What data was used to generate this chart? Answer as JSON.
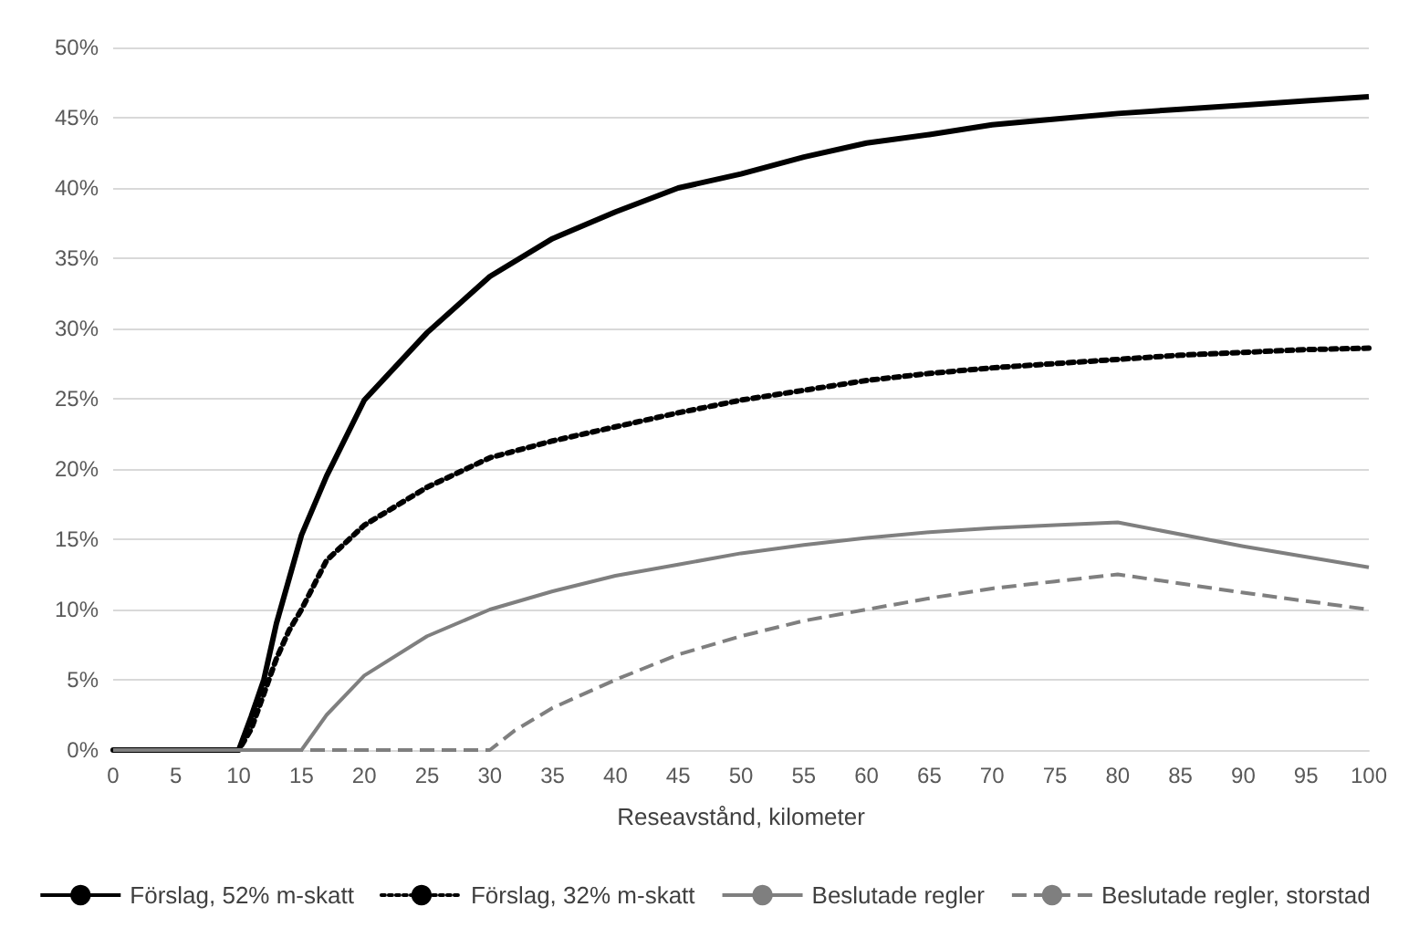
{
  "chart_data": {
    "type": "line",
    "xlabel": "Reseavstånd, kilometer",
    "xlim": [
      0,
      100
    ],
    "xticks": [
      0,
      5,
      10,
      15,
      20,
      25,
      30,
      35,
      40,
      45,
      50,
      55,
      60,
      65,
      70,
      75,
      80,
      85,
      90,
      95,
      100
    ],
    "ylim": [
      0,
      50
    ],
    "yticks": [
      {
        "value": 0,
        "label": "0%"
      },
      {
        "value": 5,
        "label": "5%"
      },
      {
        "value": 10,
        "label": "10%"
      },
      {
        "value": 15,
        "label": "15%"
      },
      {
        "value": 20,
        "label": "20%"
      },
      {
        "value": 25,
        "label": "25%"
      },
      {
        "value": 30,
        "label": "30%"
      },
      {
        "value": 35,
        "label": "35%"
      },
      {
        "value": 40,
        "label": "40%"
      },
      {
        "value": 45,
        "label": "45%"
      },
      {
        "value": 50,
        "label": "50%"
      }
    ],
    "grid": "y",
    "legend": "bottom",
    "marker": "none",
    "series": [
      {
        "name": "Förslag, 52% m-skatt",
        "color": "#000000",
        "line_style": "solid",
        "x": [
          0,
          10,
          11,
          12,
          13,
          15,
          17,
          20,
          25,
          30,
          35,
          40,
          45,
          50,
          55,
          60,
          65,
          70,
          75,
          80,
          85,
          90,
          95,
          100
        ],
        "values": [
          0,
          0,
          2.4,
          5,
          9,
          15.3,
          19.5,
          24.9,
          29.7,
          33.7,
          36.4,
          38.3,
          40,
          41,
          42.2,
          43.2,
          43.8,
          44.5,
          44.9,
          45.3,
          45.6,
          45.9,
          46.2,
          46.5
        ]
      },
      {
        "name": "Förslag, 32% m-skatt",
        "color": "#000000",
        "line_style": "dotted",
        "x": [
          0,
          10,
          11,
          12,
          13,
          14,
          15,
          17,
          20,
          25,
          30,
          35,
          40,
          45,
          50,
          55,
          60,
          65,
          70,
          75,
          80,
          85,
          90,
          95,
          100
        ],
        "values": [
          0,
          0,
          1.5,
          4,
          6.5,
          8.5,
          10,
          13.5,
          16,
          18.7,
          20.8,
          22,
          23,
          24,
          24.9,
          25.6,
          26.3,
          26.8,
          27.2,
          27.5,
          27.8,
          28.1,
          28.3,
          28.5,
          28.6
        ]
      },
      {
        "name": "Beslutade regler",
        "color": "#7f7f7f",
        "line_style": "solid",
        "x": [
          0,
          15,
          17,
          20,
          25,
          30,
          35,
          40,
          45,
          50,
          55,
          60,
          65,
          70,
          75,
          80,
          90,
          100
        ],
        "values": [
          0,
          0,
          2.5,
          5.3,
          8.1,
          10,
          11.3,
          12.4,
          13.2,
          14,
          14.6,
          15.1,
          15.5,
          15.8,
          16,
          16.2,
          14.5,
          13
        ]
      },
      {
        "name": "Beslutade regler, storstad",
        "color": "#7f7f7f",
        "line_style": "dashed",
        "x": [
          0,
          30,
          32,
          35,
          40,
          45,
          50,
          55,
          60,
          65,
          70,
          75,
          80,
          90,
          100
        ],
        "values": [
          0,
          0,
          1.4,
          3,
          5,
          6.8,
          8.1,
          9.2,
          10,
          10.8,
          11.5,
          12,
          12.5,
          11.2,
          10
        ]
      }
    ]
  }
}
